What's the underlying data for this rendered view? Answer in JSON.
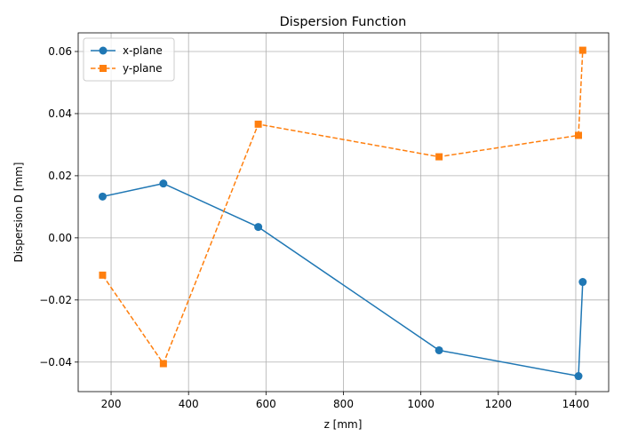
{
  "chart_data": {
    "type": "line",
    "title": "Dispersion Function",
    "xlabel": "z [mm]",
    "ylabel": "Dispersion D [mm]",
    "xlim": [
      115,
      1485
    ],
    "ylim": [
      -0.0495,
      0.066
    ],
    "xticks": [
      200,
      400,
      600,
      800,
      1000,
      1200,
      1400
    ],
    "xtick_labels": [
      "200",
      "400",
      "600",
      "800",
      "1000",
      "1200",
      "1400"
    ],
    "yticks": [
      -0.04,
      -0.02,
      0.0,
      0.02,
      0.04,
      0.06
    ],
    "ytick_labels": [
      "−0.04",
      "−0.02",
      "0.00",
      "0.02",
      "0.04",
      "0.06"
    ],
    "grid": true,
    "legend_position": "top-left",
    "x": [
      178,
      335,
      580,
      1047,
      1407,
      1418
    ],
    "series": [
      {
        "name": "x-plane",
        "values": [
          0.0133,
          0.0175,
          0.0035,
          -0.0362,
          -0.0445,
          -0.0142
        ],
        "color": "#1f77b4",
        "line_style": "solid",
        "marker": "circle"
      },
      {
        "name": "y-plane",
        "values": [
          -0.012,
          -0.0405,
          0.0366,
          0.0261,
          0.033,
          0.0604
        ],
        "color": "#ff7f0e",
        "line_style": "dashed",
        "marker": "square"
      }
    ]
  }
}
